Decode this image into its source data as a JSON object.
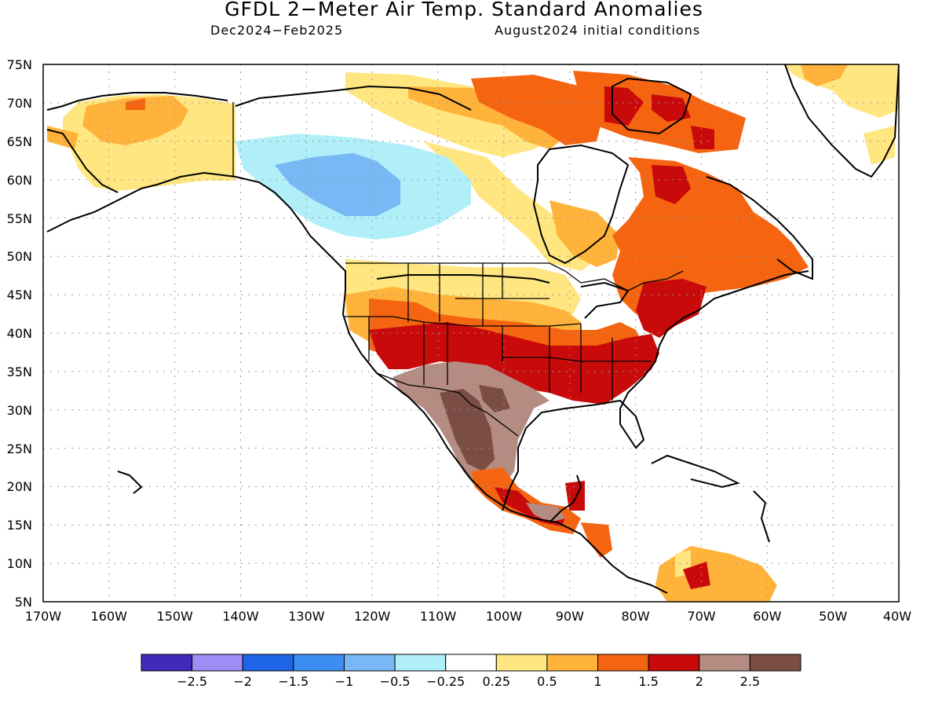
{
  "title": "GFDL 2−Meter Air Temp. Standard Anomalies",
  "period_label": "Dec2024−Feb2025",
  "initial_conditions_label": "August2024 initial conditions",
  "axes": {
    "lon_ticks": [
      "170W",
      "160W",
      "150W",
      "140W",
      "130W",
      "120W",
      "110W",
      "100W",
      "90W",
      "80W",
      "70W",
      "60W",
      "50W",
      "40W"
    ],
    "lat_ticks": [
      "5N",
      "10N",
      "15N",
      "20N",
      "25N",
      "30N",
      "35N",
      "40N",
      "45N",
      "50N",
      "55N",
      "60N",
      "65N",
      "70N",
      "75N"
    ],
    "lon_range": [
      -170,
      -40
    ],
    "lat_range": [
      5,
      75
    ],
    "grid": "dotted"
  },
  "colorbar": {
    "labels": [
      "−2.5",
      "−2",
      "−1.5",
      "−1",
      "−0.5",
      "−0.25",
      "0.25",
      "0.5",
      "1",
      "1.5",
      "2",
      "2.5"
    ],
    "colors": [
      "#3f2bb8",
      "#a08cf5",
      "#1e64e6",
      "#3c8ef2",
      "#78b8f5",
      "#b0eef8",
      "#ffffff",
      "#ffe680",
      "#ffb33a",
      "#f56410",
      "#c80a0a",
      "#b48c82",
      "#7a4e44"
    ]
  },
  "anomaly_regions": [
    {
      "region": "alaska",
      "category": "0.25-0.5"
    },
    {
      "region": "alaska-north-coast",
      "category": "0.5-1"
    },
    {
      "region": "yukon-nwt",
      "category": "-0.5--0.25"
    },
    {
      "region": "yukon-nwt-core",
      "category": "-1--0.5"
    },
    {
      "region": "hudson-bay-rim",
      "category": "0.25-0.5"
    },
    {
      "region": "northwest-us",
      "category": "0.25-0.5"
    },
    {
      "region": "great-basin",
      "category": "0.5-1"
    },
    {
      "region": "central-plains",
      "category": "1-1.5"
    },
    {
      "region": "southwest-us",
      "category": "1.5-2"
    },
    {
      "region": "southern-plains-southeast",
      "category": "1.5-2"
    },
    {
      "region": "northern-mexico",
      "category": "2-2.5"
    },
    {
      "region": "sierra-madre",
      "category": ">2.5"
    },
    {
      "region": "quebec-labrador",
      "category": "1-1.5"
    },
    {
      "region": "northern-quebec",
      "category": "1.5-2"
    },
    {
      "region": "new-england",
      "category": "1.5-2"
    },
    {
      "region": "baffin-island",
      "category": "1-1.5"
    },
    {
      "region": "baffin-bay-rim",
      "category": "1.5-2"
    },
    {
      "region": "greenland-east",
      "category": "0.25-0.5"
    },
    {
      "region": "southern-mexico",
      "category": "1-1.5"
    },
    {
      "region": "central-america",
      "category": "1-1.5"
    },
    {
      "region": "venezuela",
      "category": "0.5-1"
    }
  ]
}
